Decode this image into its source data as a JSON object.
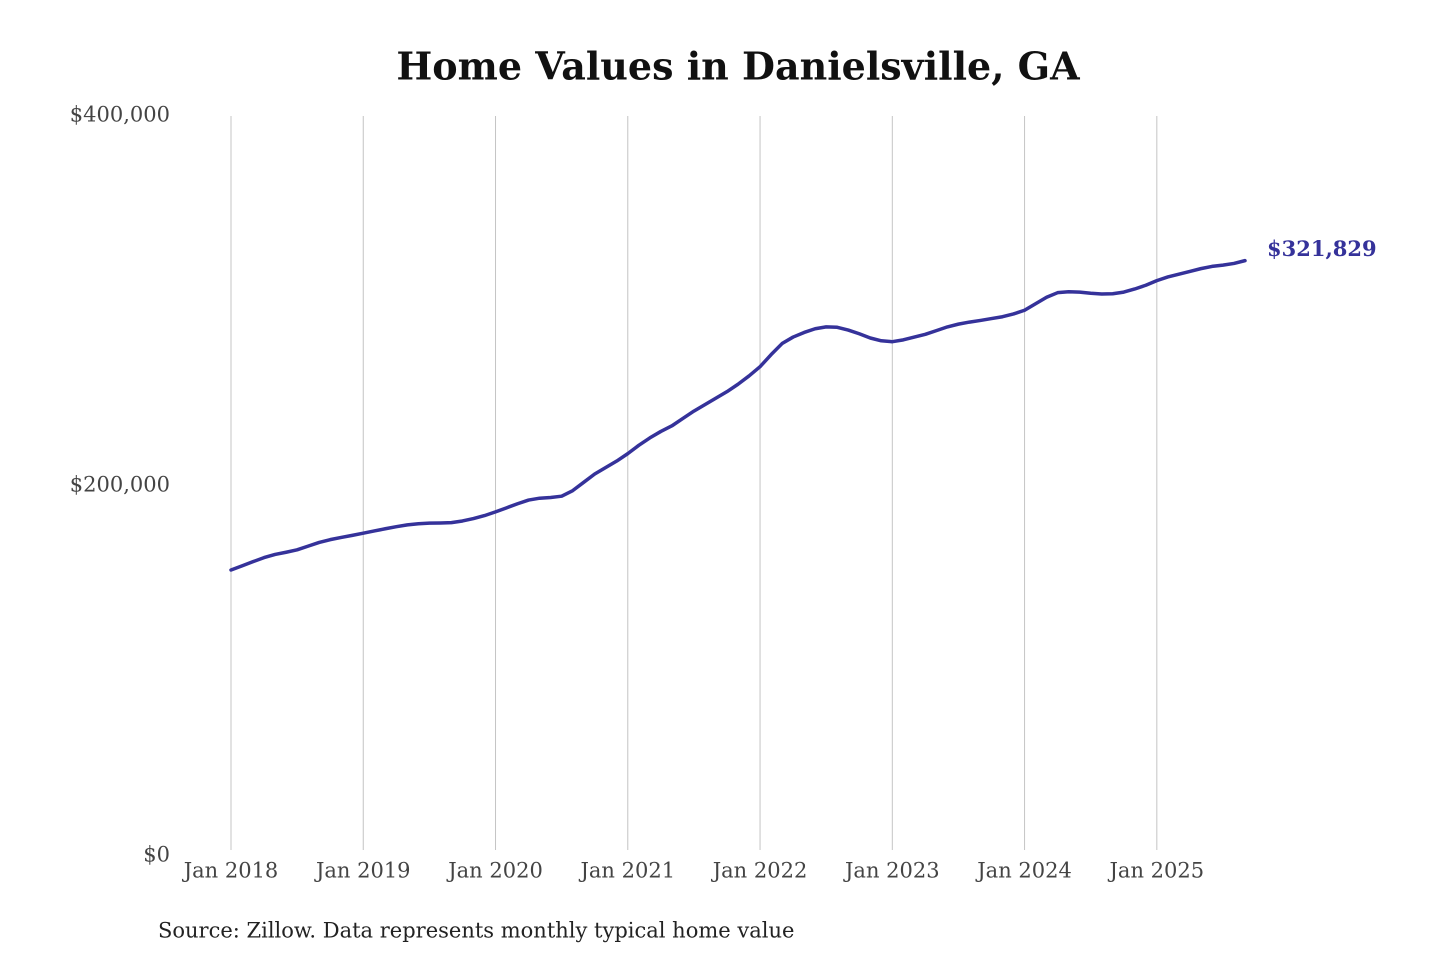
{
  "chart_data": {
    "type": "line",
    "title": "Home Values in Danielsville, GA",
    "source": "Source: Zillow. Data represents monthly typical home value",
    "x": [
      "2018-01",
      "2018-02",
      "2018-03",
      "2018-04",
      "2018-05",
      "2018-06",
      "2018-07",
      "2018-08",
      "2018-09",
      "2018-10",
      "2018-11",
      "2018-12",
      "2019-01",
      "2019-02",
      "2019-03",
      "2019-04",
      "2019-05",
      "2019-06",
      "2019-07",
      "2019-08",
      "2019-09",
      "2019-10",
      "2019-11",
      "2019-12",
      "2020-01",
      "2020-02",
      "2020-03",
      "2020-04",
      "2020-05",
      "2020-06",
      "2020-07",
      "2020-08",
      "2020-09",
      "2020-10",
      "2020-11",
      "2020-12",
      "2021-01",
      "2021-02",
      "2021-03",
      "2021-04",
      "2021-05",
      "2021-06",
      "2021-07",
      "2021-08",
      "2021-09",
      "2021-10",
      "2021-11",
      "2021-12",
      "2022-01",
      "2022-02",
      "2022-03",
      "2022-04",
      "2022-05",
      "2022-06",
      "2022-07",
      "2022-08",
      "2022-09",
      "2022-10",
      "2022-11",
      "2022-12",
      "2023-01",
      "2023-02",
      "2023-03",
      "2023-04",
      "2023-05",
      "2023-06",
      "2023-07",
      "2023-08",
      "2023-09",
      "2023-10",
      "2023-11",
      "2023-12",
      "2024-01",
      "2024-02",
      "2024-03",
      "2024-04",
      "2024-05",
      "2024-06",
      "2024-07",
      "2024-08",
      "2024-09",
      "2024-10",
      "2024-11",
      "2024-12",
      "2025-01",
      "2025-02",
      "2025-03",
      "2025-04",
      "2025-05",
      "2025-06",
      "2025-07",
      "2025-08",
      "2025-09"
    ],
    "series": [
      {
        "color": "#35329a",
        "values": [
          154600,
          156800,
          159100,
          161300,
          163000,
          164200,
          165500,
          167500,
          169500,
          171000,
          172200,
          173300,
          174500,
          175700,
          176900,
          178000,
          179000,
          179600,
          179900,
          180000,
          180200,
          181100,
          182400,
          184000,
          186000,
          188200,
          190400,
          192400,
          193400,
          193800,
          194500,
          197500,
          202000,
          206500,
          210000,
          213500,
          217500,
          222000,
          226000,
          229500,
          232500,
          236500,
          240500,
          244000,
          247500,
          251000,
          255000,
          259500,
          264500,
          271000,
          277000,
          280500,
          283000,
          285000,
          286000,
          285800,
          284300,
          282300,
          280000,
          278500,
          278000,
          279000,
          280500,
          282000,
          284000,
          286000,
          287500,
          288600,
          289500,
          290500,
          291500,
          293000,
          295000,
          298500,
          302000,
          304500,
          305000,
          304800,
          304200,
          303800,
          303900,
          304800,
          306500,
          308500,
          311000,
          313000,
          314500,
          316000,
          317500,
          318700,
          319400,
          320300,
          321829
        ],
        "value_labels": [
          null,
          null,
          null,
          null,
          null,
          null,
          null,
          null,
          null,
          null,
          null,
          null,
          null,
          null,
          null,
          null,
          null,
          null,
          null,
          null,
          null,
          null,
          null,
          null,
          null,
          null,
          null,
          null,
          null,
          null,
          null,
          null,
          null,
          null,
          null,
          null,
          null,
          null,
          null,
          null,
          null,
          null,
          null,
          null,
          null,
          null,
          null,
          null,
          null,
          null,
          null,
          null,
          null,
          null,
          null,
          null,
          null,
          null,
          null,
          null,
          null,
          null,
          null,
          null,
          null,
          null,
          null,
          null,
          null,
          null,
          null,
          null,
          null,
          null,
          null,
          null,
          null,
          null,
          null,
          null,
          null,
          null,
          null,
          null,
          null,
          null,
          null,
          null,
          null,
          null,
          null,
          null,
          "$321,829"
        ]
      }
    ],
    "xlim": [
      "2018-01",
      "2025-09"
    ],
    "xticks": [
      {
        "value": "2018-01",
        "label": "Jan 2018"
      },
      {
        "value": "2019-01",
        "label": "Jan 2019"
      },
      {
        "value": "2020-01",
        "label": "Jan 2020"
      },
      {
        "value": "2021-01",
        "label": "Jan 2021"
      },
      {
        "value": "2022-01",
        "label": "Jan 2022"
      },
      {
        "value": "2023-01",
        "label": "Jan 2023"
      },
      {
        "value": "2024-01",
        "label": "Jan 2024"
      },
      {
        "value": "2025-01",
        "label": "Jan 2025"
      }
    ],
    "ylim": [
      0,
      400000
    ],
    "yticks": [
      {
        "value": 0,
        "label": "$0"
      },
      {
        "value": 200000,
        "label": "$200,000"
      },
      {
        "value": 400000,
        "label": "$400,000"
      }
    ],
    "grid": "x"
  }
}
